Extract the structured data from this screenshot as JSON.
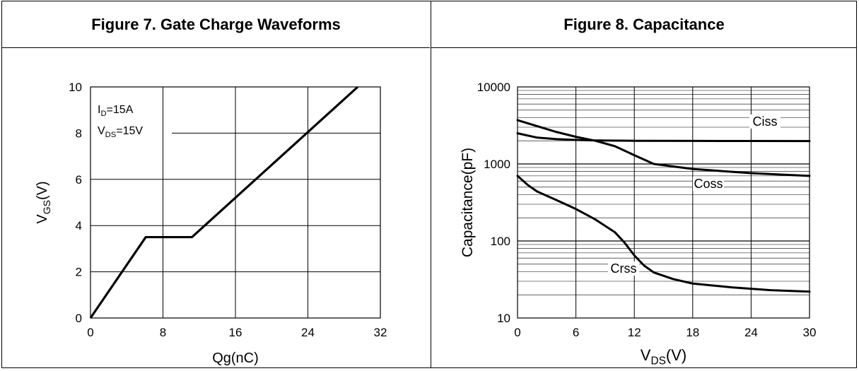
{
  "chart_data": [
    {
      "type": "line",
      "title": "Figure 7. Gate Charge Waveforms",
      "xlabel": "Qg(nC)",
      "ylabel_main": "V",
      "ylabel_sub": "GS",
      "ylabel_unit": "(V)",
      "xlim": [
        0,
        32
      ],
      "ylim": [
        0,
        10
      ],
      "xticks": [
        0,
        8,
        16,
        24,
        32
      ],
      "yticks": [
        0,
        2,
        4,
        6,
        8,
        10
      ],
      "annotation": {
        "line1_main": "I",
        "line1_sub": "D",
        "line1_rest": "=15A",
        "line2_main": "V",
        "line2_sub": "DS",
        "line2_rest": "=15V"
      },
      "grid": true,
      "series": [
        {
          "x": [
            0,
            6.1,
            11.2,
            29.5
          ],
          "y": [
            0,
            3.5,
            3.5,
            10
          ]
        }
      ]
    },
    {
      "type": "line",
      "title": "Figure 8. Capacitance",
      "xlabel_main": "V",
      "xlabel_sub": "DS",
      "xlabel_unit": "(V)",
      "ylabel": "Capacitance(pF)",
      "xlim": [
        0,
        30
      ],
      "ylim": [
        10,
        10000
      ],
      "yscale": "log",
      "xticks": [
        0,
        6,
        12,
        18,
        24,
        30
      ],
      "yticks": [
        "10",
        "100",
        "1000",
        "10000"
      ],
      "grid": true,
      "series": [
        {
          "name": "Ciss",
          "x": [
            0,
            2,
            4,
            6,
            8,
            12,
            18,
            24,
            30
          ],
          "y": [
            2500,
            2200,
            2100,
            2050,
            2020,
            2000,
            1990,
            1985,
            1980
          ]
        },
        {
          "name": "Coss",
          "x": [
            0,
            2,
            4,
            6,
            8,
            10,
            12,
            14,
            18,
            24,
            30
          ],
          "y": [
            3700,
            3100,
            2600,
            2250,
            2000,
            1700,
            1300,
            1000,
            860,
            760,
            700
          ]
        },
        {
          "name": "Crss",
          "x": [
            0,
            1,
            2,
            4,
            6,
            8,
            10,
            11,
            12,
            13,
            14,
            16,
            18,
            22,
            26,
            30
          ],
          "y": [
            700,
            540,
            440,
            340,
            260,
            190,
            130,
            95,
            65,
            48,
            39,
            32,
            28,
            25,
            23,
            22
          ]
        }
      ]
    }
  ]
}
